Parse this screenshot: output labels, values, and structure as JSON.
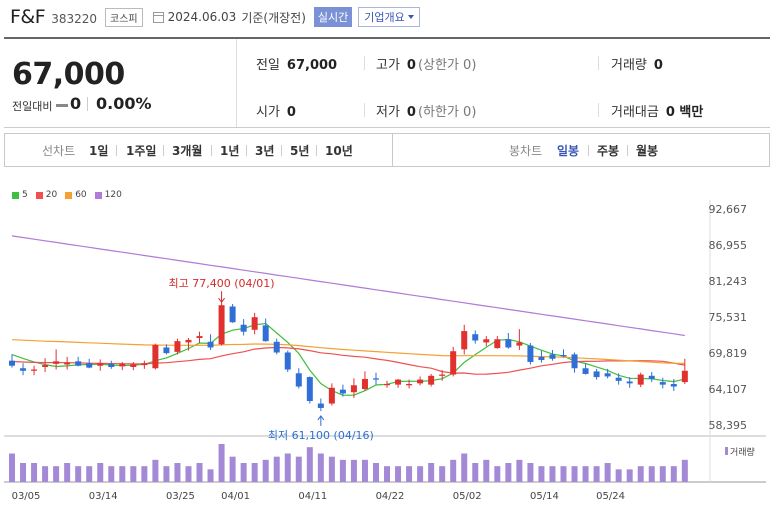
{
  "header": {
    "name": "F&F",
    "code": "383220",
    "market": "코스피",
    "date": "2024.06.03",
    "basis": "기준(개장전)",
    "realtime": "실시간",
    "company": "기업개요"
  },
  "price": {
    "current": "67,000",
    "change_label": "전일대비",
    "change": "0",
    "change_rate": "0.00%"
  },
  "info": {
    "prev": {
      "label": "전일",
      "value": "67,000"
    },
    "high": {
      "label": "고가",
      "value": "0",
      "sub": "(상한가 0)"
    },
    "volume": {
      "label": "거래량",
      "value": "0"
    },
    "open": {
      "label": "시가",
      "value": "0"
    },
    "low": {
      "label": "저가",
      "value": "0",
      "sub": "(하한가 0)"
    },
    "amount": {
      "label": "거래대금",
      "value": "0 백만"
    }
  },
  "tabs": {
    "line_head": "선차트",
    "line": [
      "1일",
      "1주일",
      "3개월",
      "1년",
      "3년",
      "5년",
      "10년"
    ],
    "candle_head": "봉차트",
    "candle": [
      "일봉",
      "주봉",
      "월봉"
    ],
    "candle_active": 0
  },
  "colors": {
    "up": "#e0312f",
    "down": "#2f6fd6",
    "ma5": "#3fbf3f",
    "ma20": "#f05050",
    "ma60": "#f5a030",
    "ma120": "#b07ad8",
    "volume": "#a48ad6"
  },
  "chart_data": {
    "type": "candlestick",
    "legend": [
      {
        "name": "5",
        "color": "#3fbf3f"
      },
      {
        "name": "20",
        "color": "#f05050"
      },
      {
        "name": "60",
        "color": "#f5a030"
      },
      {
        "name": "120",
        "color": "#b07ad8"
      }
    ],
    "y_ticks": [
      "92,667",
      "86,955",
      "81,243",
      "75,531",
      "69,819",
      "64,107",
      "58,395"
    ],
    "ylim": [
      58395,
      92667
    ],
    "x_ticks": [
      {
        "label": "03/05",
        "index": 0
      },
      {
        "label": "03/14",
        "index": 7
      },
      {
        "label": "03/25",
        "index": 14
      },
      {
        "label": "04/01",
        "index": 19
      },
      {
        "label": "04/11",
        "index": 26
      },
      {
        "label": "04/22",
        "index": 33
      },
      {
        "label": "05/02",
        "index": 40
      },
      {
        "label": "05/14",
        "index": 47
      },
      {
        "label": "05/24",
        "index": 53
      }
    ],
    "annotations": {
      "high": {
        "text": "최고 77,400 (04/01)",
        "index": 19,
        "value": 77400
      },
      "low": {
        "text": "최저 61,100 (04/16)",
        "index": 28,
        "value": 61100
      }
    },
    "volume_label": "거래량",
    "candles": [
      {
        "o": 68600,
        "h": 69600,
        "l": 67500,
        "c": 67800
      },
      {
        "o": 67400,
        "h": 68200,
        "l": 66300,
        "c": 67000
      },
      {
        "o": 67000,
        "h": 67800,
        "l": 66300,
        "c": 67200
      },
      {
        "o": 67600,
        "h": 69000,
        "l": 66800,
        "c": 67900
      },
      {
        "o": 68100,
        "h": 70400,
        "l": 67200,
        "c": 68500
      },
      {
        "o": 68000,
        "h": 69200,
        "l": 67200,
        "c": 68300
      },
      {
        "o": 68500,
        "h": 69200,
        "l": 67700,
        "c": 67800
      },
      {
        "o": 68200,
        "h": 68900,
        "l": 67400,
        "c": 67500
      },
      {
        "o": 67800,
        "h": 68800,
        "l": 67000,
        "c": 68200
      },
      {
        "o": 68100,
        "h": 68600,
        "l": 67300,
        "c": 67600
      },
      {
        "o": 67700,
        "h": 68400,
        "l": 67100,
        "c": 68100
      },
      {
        "o": 67600,
        "h": 68400,
        "l": 67100,
        "c": 68000
      },
      {
        "o": 67900,
        "h": 68600,
        "l": 67300,
        "c": 68200
      },
      {
        "o": 67400,
        "h": 71300,
        "l": 67200,
        "c": 71100
      },
      {
        "o": 70700,
        "h": 71200,
        "l": 69600,
        "c": 69800
      },
      {
        "o": 70000,
        "h": 72100,
        "l": 69600,
        "c": 71700
      },
      {
        "o": 71500,
        "h": 72200,
        "l": 70200,
        "c": 71900
      },
      {
        "o": 72200,
        "h": 73200,
        "l": 71400,
        "c": 72500
      },
      {
        "o": 71600,
        "h": 72800,
        "l": 70300,
        "c": 70700
      },
      {
        "o": 71200,
        "h": 78000,
        "l": 71000,
        "c": 77400
      },
      {
        "o": 77200,
        "h": 77600,
        "l": 74600,
        "c": 74700
      },
      {
        "o": 74300,
        "h": 75200,
        "l": 72600,
        "c": 73200
      },
      {
        "o": 73500,
        "h": 76200,
        "l": 72800,
        "c": 75500
      },
      {
        "o": 74200,
        "h": 75300,
        "l": 71600,
        "c": 71700
      },
      {
        "o": 71600,
        "h": 72100,
        "l": 69600,
        "c": 69900
      },
      {
        "o": 69900,
        "h": 70200,
        "l": 66800,
        "c": 67200
      },
      {
        "o": 66600,
        "h": 67400,
        "l": 64200,
        "c": 64500
      },
      {
        "o": 66000,
        "h": 66100,
        "l": 61800,
        "c": 62200
      },
      {
        "o": 61800,
        "h": 62600,
        "l": 60600,
        "c": 61100
      },
      {
        "o": 61800,
        "h": 65000,
        "l": 61500,
        "c": 64300
      },
      {
        "o": 64000,
        "h": 64800,
        "l": 62900,
        "c": 63400
      },
      {
        "o": 63600,
        "h": 65800,
        "l": 62700,
        "c": 64700
      },
      {
        "o": 64100,
        "h": 66900,
        "l": 63800,
        "c": 65700
      },
      {
        "o": 65800,
        "h": 66700,
        "l": 64800,
        "c": 65600
      },
      {
        "o": 64800,
        "h": 65400,
        "l": 64300,
        "c": 64900
      },
      {
        "o": 64800,
        "h": 65700,
        "l": 64300,
        "c": 65600
      },
      {
        "o": 64700,
        "h": 65600,
        "l": 64200,
        "c": 64900
      },
      {
        "o": 65000,
        "h": 66100,
        "l": 64700,
        "c": 65600
      },
      {
        "o": 64800,
        "h": 66500,
        "l": 64500,
        "c": 66200
      },
      {
        "o": 66200,
        "h": 67100,
        "l": 65400,
        "c": 66400
      },
      {
        "o": 66400,
        "h": 70800,
        "l": 66100,
        "c": 70100
      },
      {
        "o": 70400,
        "h": 74300,
        "l": 69600,
        "c": 73300
      },
      {
        "o": 72800,
        "h": 73400,
        "l": 71300,
        "c": 71800
      },
      {
        "o": 71500,
        "h": 72500,
        "l": 70900,
        "c": 72000
      },
      {
        "o": 70600,
        "h": 72500,
        "l": 70500,
        "c": 72000
      },
      {
        "o": 72000,
        "h": 73000,
        "l": 70500,
        "c": 70700
      },
      {
        "o": 71000,
        "h": 73600,
        "l": 70300,
        "c": 71500
      },
      {
        "o": 71000,
        "h": 71400,
        "l": 68000,
        "c": 68400
      },
      {
        "o": 69200,
        "h": 70200,
        "l": 68300,
        "c": 68700
      },
      {
        "o": 69600,
        "h": 70300,
        "l": 68600,
        "c": 68900
      },
      {
        "o": 69500,
        "h": 70400,
        "l": 69100,
        "c": 69300
      },
      {
        "o": 69600,
        "h": 69900,
        "l": 66700,
        "c": 67400
      },
      {
        "o": 67400,
        "h": 68200,
        "l": 66400,
        "c": 66500
      },
      {
        "o": 66900,
        "h": 67300,
        "l": 65600,
        "c": 66000
      },
      {
        "o": 66600,
        "h": 67300,
        "l": 65800,
        "c": 66100
      },
      {
        "o": 65900,
        "h": 66600,
        "l": 64800,
        "c": 65400
      },
      {
        "o": 65300,
        "h": 66000,
        "l": 64300,
        "c": 65000
      },
      {
        "o": 64800,
        "h": 66700,
        "l": 64400,
        "c": 66400
      },
      {
        "o": 66200,
        "h": 66800,
        "l": 65200,
        "c": 65700
      },
      {
        "o": 65200,
        "h": 65900,
        "l": 64200,
        "c": 64800
      },
      {
        "o": 64900,
        "h": 65700,
        "l": 63800,
        "c": 64500
      },
      {
        "o": 65200,
        "h": 68900,
        "l": 64900,
        "c": 67000
      }
    ],
    "volume": [
      9,
      6,
      6,
      5,
      5,
      6,
      5,
      5,
      6,
      5,
      5,
      5,
      5,
      7,
      5,
      6,
      5,
      6,
      4,
      12,
      8,
      6,
      6,
      7,
      8,
      9,
      8,
      11,
      9,
      8,
      7,
      7,
      7,
      6,
      5,
      5,
      5,
      5,
      6,
      5,
      7,
      9,
      6,
      7,
      5,
      6,
      7,
      6,
      5,
      5,
      5,
      5,
      5,
      5,
      6,
      4,
      4,
      5,
      5,
      5,
      5,
      7
    ]
  }
}
